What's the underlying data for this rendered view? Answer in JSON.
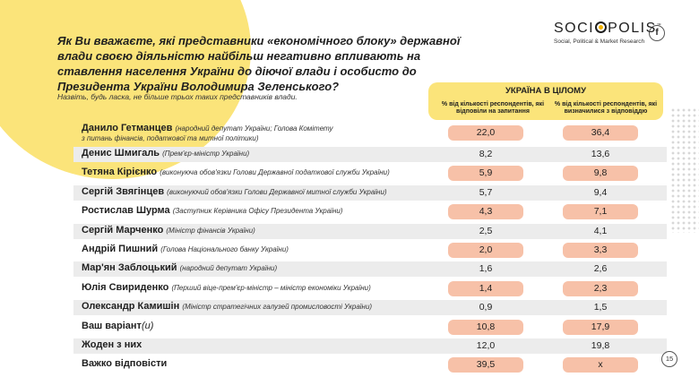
{
  "question": {
    "part1": "Як Ви вважаєте, які представники «економічного блоку» державної влади своєю діяльністю ",
    "highlight": "найбільш негативно впливають",
    "part2": " на ставлення населення України до діючої влади і особисто до Президента України Володимира Зеленського?"
  },
  "subtitle": "Назвіть, будь ласка, не більше трьох таких представників влади.",
  "logo": {
    "part1": "SOCI",
    "part2": "POLIS",
    "tm": "™",
    "tagline": "Social, Political & Market Research"
  },
  "social": {
    "fb_icon": "f"
  },
  "table_header": {
    "title": "УКРАЇНА В ЦІЛОМУ",
    "col1": "% від кількості респондентів, які відповіли на запитання",
    "col2": "% від кількості респондентів, які визначилися з відповіддю"
  },
  "rows": [
    {
      "name": "Данило Гетманцев",
      "role": "(народний депутат України; Голова Комітету",
      "role2": "з питань фінансів, податкової та митної політики)",
      "v1": "22,0",
      "v2": "36,4",
      "hi": true
    },
    {
      "name": "Денис Шмигаль",
      "role": "(Прем'єр-міністр України)",
      "v1": "8,2",
      "v2": "13,6",
      "hi": false
    },
    {
      "name": "Тетяна Кірієнко",
      "role": "(виконуюча обов'язки Голови Державної податкової служби України)",
      "v1": "5,9",
      "v2": "9,8",
      "hi": true
    },
    {
      "name": "Сергій Звягінцев",
      "role": "(виконуючий обов'язки Голови Державної митної служби України)",
      "v1": "5,7",
      "v2": "9,4",
      "hi": false
    },
    {
      "name": "Ростислав Шурма",
      "role": "(Заступник Керівника Офісу Президента України)",
      "v1": "4,3",
      "v2": "7,1",
      "hi": true
    },
    {
      "name": "Сергій Марченко",
      "role": "(Міністр фінансів України)",
      "v1": "2,5",
      "v2": "4,1",
      "hi": false
    },
    {
      "name": "Андрій Пишний",
      "role": "(Голова Національного банку України)",
      "v1": "2,0",
      "v2": "3,3",
      "hi": true
    },
    {
      "name": "Мар'ян Заблоцький",
      "role": "(народний депутат України)",
      "v1": "1,6",
      "v2": "2,6",
      "hi": false
    },
    {
      "name": "Юлія Свириденко",
      "role": "(Перший віце-прем'єр-міністр – міністр економіки України)",
      "v1": "1,4",
      "v2": "2,3",
      "hi": true
    },
    {
      "name": "Олександр Камишін",
      "role": "(Міністр стратегічних галузей промисловості України)",
      "v1": "0,9",
      "v2": "1,5",
      "hi": false
    },
    {
      "name": "Ваш варіант",
      "suffix": "(и)",
      "v1": "10,8",
      "v2": "17,9",
      "hi": true
    },
    {
      "name": "Жоден з них",
      "v1": "12,0",
      "v2": "19,8",
      "hi": false
    },
    {
      "name": "Важко відповісти",
      "v1": "39,5",
      "v2": "х",
      "hi": true
    }
  ],
  "page_number": "15",
  "colors": {
    "accent_yellow": "#fbe47a",
    "highlight_salmon": "#f7c1a8",
    "row_shade": "#ececec"
  }
}
